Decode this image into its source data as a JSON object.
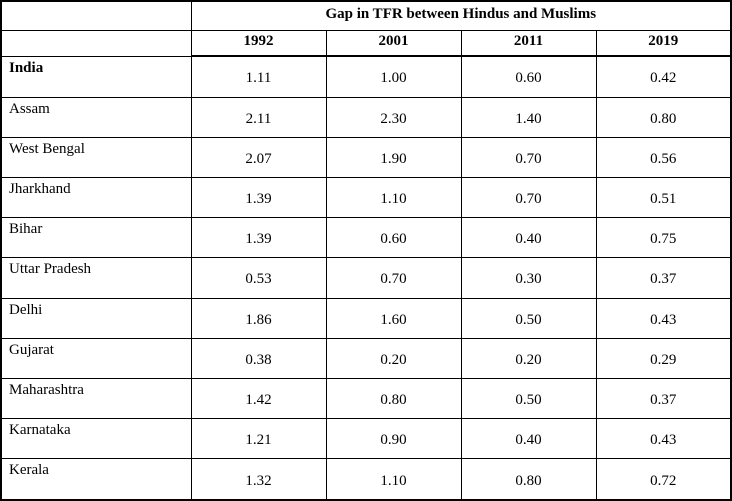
{
  "table": {
    "title": "Gap in TFR between Hindus and Muslims",
    "years": [
      "1992",
      "2001",
      "2011",
      "2019"
    ],
    "rows": [
      {
        "label": "India",
        "bold": true,
        "values": [
          "1.11",
          "1.00",
          "0.60",
          "0.42"
        ]
      },
      {
        "label": "Assam",
        "bold": false,
        "values": [
          "2.11",
          "2.30",
          "1.40",
          "0.80"
        ]
      },
      {
        "label": "West Bengal",
        "bold": false,
        "values": [
          "2.07",
          "1.90",
          "0.70",
          "0.56"
        ]
      },
      {
        "label": "Jharkhand",
        "bold": false,
        "values": [
          "1.39",
          "1.10",
          "0.70",
          "0.51"
        ]
      },
      {
        "label": "Bihar",
        "bold": false,
        "values": [
          "1.39",
          "0.60",
          "0.40",
          "0.75"
        ]
      },
      {
        "label": "Uttar Pradesh",
        "bold": false,
        "values": [
          "0.53",
          "0.70",
          "0.30",
          "0.37"
        ]
      },
      {
        "label": "Delhi",
        "bold": false,
        "values": [
          "1.86",
          "1.60",
          "0.50",
          "0.43"
        ]
      },
      {
        "label": "Gujarat",
        "bold": false,
        "values": [
          "0.38",
          "0.20",
          "0.20",
          "0.29"
        ]
      },
      {
        "label": "Maharashtra",
        "bold": false,
        "values": [
          "1.42",
          "0.80",
          "0.50",
          "0.37"
        ]
      },
      {
        "label": "Karnataka",
        "bold": false,
        "values": [
          "1.21",
          "0.90",
          "0.40",
          "0.43"
        ]
      },
      {
        "label": "Kerala",
        "bold": false,
        "values": [
          "1.32",
          "1.10",
          "0.80",
          "0.72"
        ]
      }
    ],
    "colors": {
      "border": "#000000",
      "text": "#000000",
      "background": "#ffffff"
    }
  },
  "chart_data": {
    "type": "table",
    "title": "Gap in TFR between Hindus and Muslims",
    "columns": [
      "",
      "1992",
      "2001",
      "2011",
      "2019"
    ],
    "rows": [
      [
        "India",
        1.11,
        1.0,
        0.6,
        0.42
      ],
      [
        "Assam",
        2.11,
        2.3,
        1.4,
        0.8
      ],
      [
        "West Bengal",
        2.07,
        1.9,
        0.7,
        0.56
      ],
      [
        "Jharkhand",
        1.39,
        1.1,
        0.7,
        0.51
      ],
      [
        "Bihar",
        1.39,
        0.6,
        0.4,
        0.75
      ],
      [
        "Uttar Pradesh",
        0.53,
        0.7,
        0.3,
        0.37
      ],
      [
        "Delhi",
        1.86,
        1.6,
        0.5,
        0.43
      ],
      [
        "Gujarat",
        0.38,
        0.2,
        0.2,
        0.29
      ],
      [
        "Maharashtra",
        1.42,
        0.8,
        0.5,
        0.37
      ],
      [
        "Karnataka",
        1.21,
        0.9,
        0.4,
        0.43
      ],
      [
        "Kerala",
        1.32,
        1.1,
        0.8,
        0.72
      ]
    ]
  }
}
